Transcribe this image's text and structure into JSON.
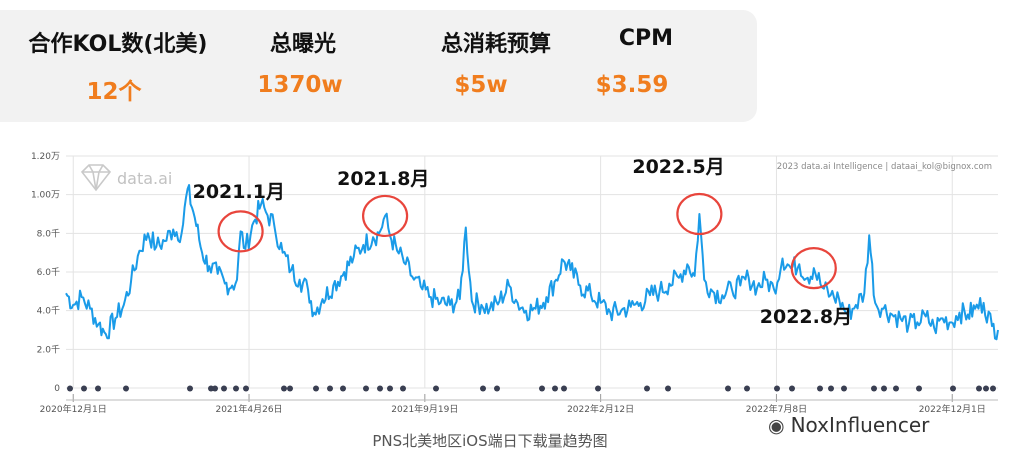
{
  "stats": [
    {
      "label": "合作KOL数(北美)",
      "value": "12个"
    },
    {
      "label": "总曝光",
      "value": "1370w"
    },
    {
      "label": "总消耗预算",
      "value": "$5w"
    },
    {
      "label": "CPM",
      "value": "$3.59"
    }
  ],
  "caption": "PNS北美地区iOS端日下载量趋势图",
  "brand_watermark": "NoxInfluencer",
  "colors": {
    "accent": "#f07d1e",
    "line": "#1a9be8",
    "highlight": "#e8453c",
    "panel": "#f2f2f2"
  },
  "chart_data": {
    "type": "line",
    "title": "",
    "watermark": "data.ai",
    "copyright": "2023 data.ai Intelligence | dataai_kol@bignox.com",
    "xlabel": "",
    "ylabel": "",
    "x_range": [
      "2020-11-25",
      "2023-01-08"
    ],
    "y_range": [
      0,
      12000
    ],
    "yticks": [
      {
        "value": 0,
        "label": "0"
      },
      {
        "value": 2000,
        "label": "2.0千"
      },
      {
        "value": 4000,
        "label": "4.0千"
      },
      {
        "value": 6000,
        "label": "6.0千"
      },
      {
        "value": 8000,
        "label": "8.0千"
      },
      {
        "value": 10000,
        "label": "1.00万"
      },
      {
        "value": 12000,
        "label": "1.20万"
      }
    ],
    "xticks": [
      {
        "date": "2020-12-01",
        "label": "2020年12月1日"
      },
      {
        "date": "2021-04-26",
        "label": "2021年4月26日"
      },
      {
        "date": "2021-09-19",
        "label": "2021年9月19日"
      },
      {
        "date": "2022-02-12",
        "label": "2022年2月12日"
      },
      {
        "date": "2022-07-08",
        "label": "2022年7月8日"
      },
      {
        "date": "2022-12-01",
        "label": "2022年12月1日"
      }
    ],
    "grid": true,
    "series": [
      {
        "values": [
          [
            "2020-11-25",
            4900
          ],
          [
            "2020-12-01",
            4300
          ],
          [
            "2020-12-08",
            4700
          ],
          [
            "2020-12-15",
            4100
          ],
          [
            "2020-12-22",
            3300
          ],
          [
            "2020-12-28",
            2800
          ],
          [
            "2021-01-05",
            3600
          ],
          [
            "2021-01-12",
            4300
          ],
          [
            "2021-01-18",
            5500
          ],
          [
            "2021-01-25",
            7100
          ],
          [
            "2021-02-01",
            8000
          ],
          [
            "2021-02-08",
            7300
          ],
          [
            "2021-02-15",
            7600
          ],
          [
            "2021-02-22",
            8200
          ],
          [
            "2021-03-01",
            8000
          ],
          [
            "2021-03-06",
            10300
          ],
          [
            "2021-03-12",
            8800
          ],
          [
            "2021-03-18",
            7000
          ],
          [
            "2021-03-24",
            6300
          ],
          [
            "2021-03-31",
            5900
          ],
          [
            "2021-04-06",
            5400
          ],
          [
            "2021-04-12",
            5300
          ],
          [
            "2021-04-16",
            5600
          ],
          [
            "2021-04-19",
            8100
          ],
          [
            "2021-04-23",
            7200
          ],
          [
            "2021-04-30",
            8600
          ],
          [
            "2021-05-06",
            9500
          ],
          [
            "2021-05-10",
            9100
          ],
          [
            "2021-05-17",
            8400
          ],
          [
            "2021-05-24",
            7000
          ],
          [
            "2021-05-31",
            6100
          ],
          [
            "2021-06-07",
            5600
          ],
          [
            "2021-06-14",
            5100
          ],
          [
            "2021-06-19",
            3900
          ],
          [
            "2021-06-26",
            4600
          ],
          [
            "2021-07-05",
            5300
          ],
          [
            "2021-07-14",
            6000
          ],
          [
            "2021-07-22",
            6800
          ],
          [
            "2021-07-30",
            7400
          ],
          [
            "2021-08-07",
            7800
          ],
          [
            "2021-08-12",
            8000
          ],
          [
            "2021-08-17",
            8900
          ],
          [
            "2021-08-21",
            7900
          ],
          [
            "2021-08-27",
            7100
          ],
          [
            "2021-09-03",
            6400
          ],
          [
            "2021-09-10",
            5600
          ],
          [
            "2021-09-17",
            5100
          ],
          [
            "2021-09-24",
            4700
          ],
          [
            "2021-10-02",
            4400
          ],
          [
            "2021-10-10",
            4300
          ],
          [
            "2021-10-18",
            4600
          ],
          [
            "2021-10-23",
            8300
          ],
          [
            "2021-10-28",
            4500
          ],
          [
            "2021-11-05",
            4300
          ],
          [
            "2021-11-12",
            4100
          ],
          [
            "2021-11-20",
            4500
          ],
          [
            "2021-11-28",
            5300
          ],
          [
            "2021-12-05",
            4400
          ],
          [
            "2021-12-12",
            4000
          ],
          [
            "2021-12-20",
            4100
          ],
          [
            "2021-12-29",
            4700
          ],
          [
            "2022-01-06",
            5600
          ],
          [
            "2022-01-12",
            6600
          ],
          [
            "2022-01-18",
            6100
          ],
          [
            "2022-01-26",
            5300
          ],
          [
            "2022-02-04",
            4800
          ],
          [
            "2022-02-12",
            4400
          ],
          [
            "2022-02-20",
            3900
          ],
          [
            "2022-03-01",
            4000
          ],
          [
            "2022-03-09",
            4200
          ],
          [
            "2022-03-17",
            4400
          ],
          [
            "2022-03-25",
            4800
          ],
          [
            "2022-04-02",
            5000
          ],
          [
            "2022-04-10",
            5400
          ],
          [
            "2022-04-18",
            5700
          ],
          [
            "2022-04-25",
            6400
          ],
          [
            "2022-05-01",
            5800
          ],
          [
            "2022-05-05",
            9000
          ],
          [
            "2022-05-09",
            5600
          ],
          [
            "2022-05-16",
            5000
          ],
          [
            "2022-05-24",
            4800
          ],
          [
            "2022-06-01",
            5100
          ],
          [
            "2022-06-08",
            5300
          ],
          [
            "2022-06-15",
            5700
          ],
          [
            "2022-06-22",
            5200
          ],
          [
            "2022-06-29",
            5600
          ],
          [
            "2022-07-06",
            5100
          ],
          [
            "2022-07-13",
            6700
          ],
          [
            "2022-07-20",
            6200
          ],
          [
            "2022-07-27",
            6400
          ],
          [
            "2022-08-03",
            5700
          ],
          [
            "2022-08-08",
            6200
          ],
          [
            "2022-08-15",
            5200
          ],
          [
            "2022-08-22",
            4800
          ],
          [
            "2022-08-29",
            4600
          ],
          [
            "2022-09-05",
            3800
          ],
          [
            "2022-09-12",
            4300
          ],
          [
            "2022-09-19",
            4900
          ],
          [
            "2022-09-23",
            7900
          ],
          [
            "2022-09-28",
            4400
          ],
          [
            "2022-10-05",
            4100
          ],
          [
            "2022-10-12",
            3800
          ],
          [
            "2022-10-19",
            3600
          ],
          [
            "2022-10-26",
            3300
          ],
          [
            "2022-11-02",
            3400
          ],
          [
            "2022-11-09",
            3700
          ],
          [
            "2022-11-16",
            3100
          ],
          [
            "2022-11-23",
            3600
          ],
          [
            "2022-11-30",
            3400
          ],
          [
            "2022-12-07",
            3900
          ],
          [
            "2022-12-14",
            3800
          ],
          [
            "2022-12-20",
            4100
          ],
          [
            "2022-12-27",
            4400
          ],
          [
            "2023-01-03",
            3200
          ],
          [
            "2023-01-08",
            3000
          ]
        ]
      }
    ],
    "annotations": [
      {
        "text": "2021.1月",
        "date": "2021-04-19",
        "value": 8100
      },
      {
        "text": "2021.8月",
        "date": "2021-08-17",
        "value": 8900
      },
      {
        "text": "2022.5月",
        "date": "2022-05-05",
        "value": 9000
      },
      {
        "text": "2022.8月",
        "date": "2022-08-08",
        "value": 6200
      }
    ]
  }
}
